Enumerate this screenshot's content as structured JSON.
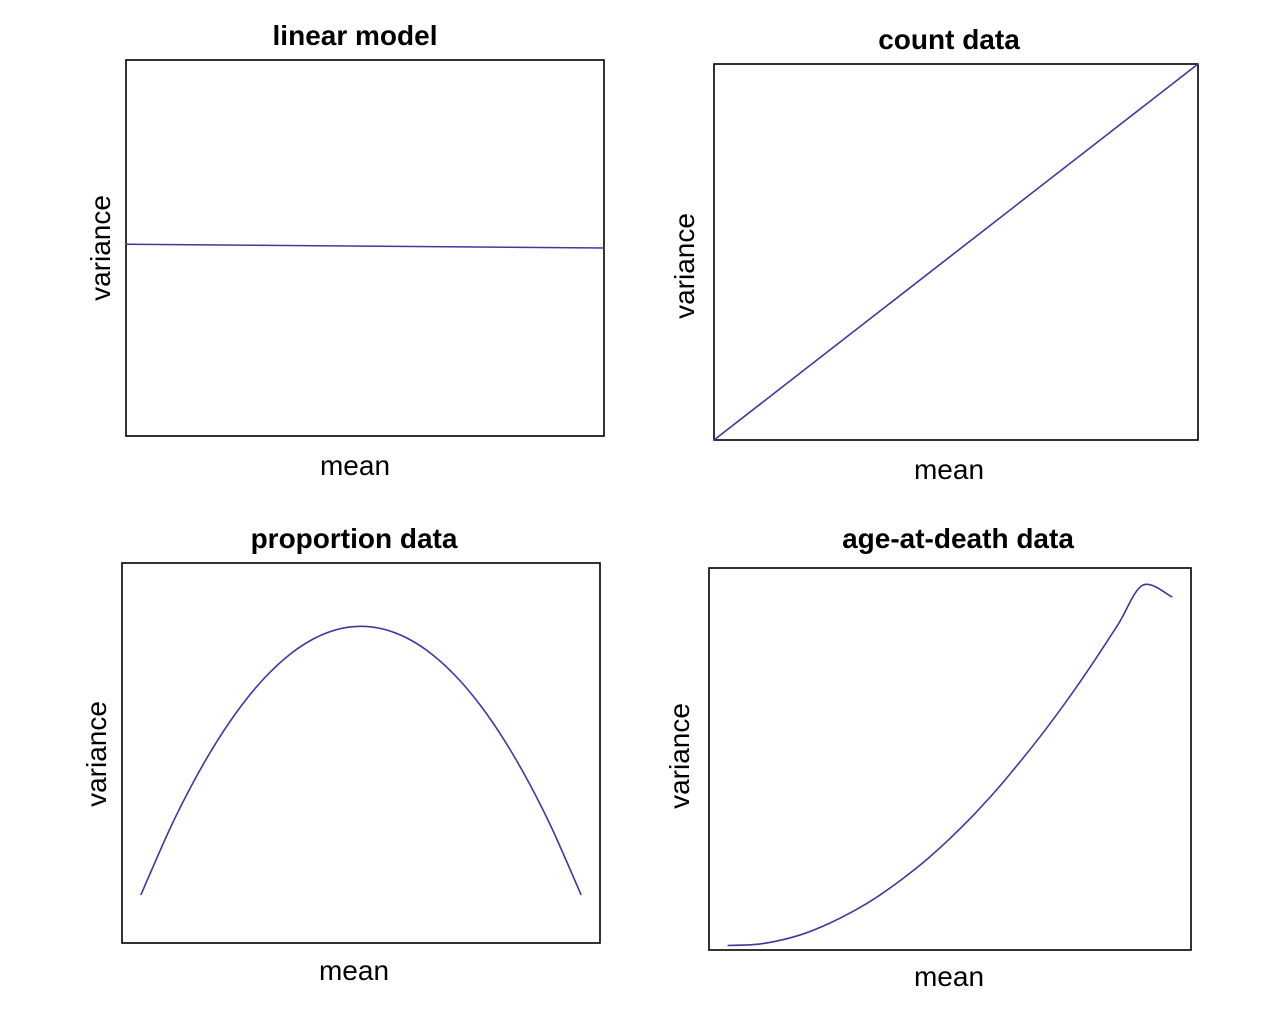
{
  "colors": {
    "series": "#3b3b9b",
    "frame": "#000000",
    "background": "#ffffff"
  },
  "chart_data": [
    {
      "type": "line",
      "title": "linear model",
      "xlabel": "mean",
      "ylabel": "variance",
      "xlim": [
        0,
        1
      ],
      "ylim": [
        0,
        1
      ],
      "grid": false,
      "ticks": false,
      "series": [
        {
          "x": [
            0,
            1
          ],
          "y": [
            0.51,
            0.5
          ]
        }
      ]
    },
    {
      "type": "line",
      "title": "count data",
      "xlabel": "mean",
      "ylabel": "variance",
      "xlim": [
        0,
        1
      ],
      "ylim": [
        0,
        1
      ],
      "grid": false,
      "ticks": false,
      "series": [
        {
          "x": [
            0,
            1
          ],
          "y": [
            0,
            1
          ]
        }
      ]
    },
    {
      "type": "line",
      "title": "proportion data",
      "xlabel": "mean",
      "ylabel": "variance",
      "xlim": [
        0,
        1
      ],
      "ylim": [
        0,
        0.3
      ],
      "grid": false,
      "ticks": false,
      "series": [
        {
          "x": [
            0.04,
            0.1,
            0.15,
            0.2,
            0.25,
            0.3,
            0.35,
            0.4,
            0.45,
            0.5,
            0.55,
            0.6,
            0.65,
            0.7,
            0.75,
            0.8,
            0.85,
            0.9,
            0.96
          ],
          "y": [
            0.0384,
            0.09,
            0.1275,
            0.16,
            0.1875,
            0.21,
            0.2275,
            0.24,
            0.2475,
            0.25,
            0.2475,
            0.24,
            0.2275,
            0.21,
            0.1875,
            0.16,
            0.1275,
            0.09,
            0.0384
          ]
        }
      ]
    },
    {
      "type": "line",
      "title": "age-at-death data",
      "xlabel": "mean",
      "ylabel": "variance",
      "xlim": [
        0,
        1
      ],
      "ylim": [
        0,
        1
      ],
      "grid": false,
      "ticks": false,
      "series": [
        {
          "x": [
            0.04,
            0.1,
            0.15,
            0.2,
            0.25,
            0.3,
            0.35,
            0.4,
            0.45,
            0.5,
            0.55,
            0.6,
            0.65,
            0.7,
            0.75,
            0.8,
            0.85,
            0.9,
            0.96
          ],
          "y": [
            0.012,
            0.015,
            0.026,
            0.044,
            0.07,
            0.102,
            0.14,
            0.185,
            0.235,
            0.292,
            0.355,
            0.424,
            0.5,
            0.58,
            0.666,
            0.758,
            0.855,
            0.955,
            0.925
          ]
        }
      ]
    }
  ]
}
